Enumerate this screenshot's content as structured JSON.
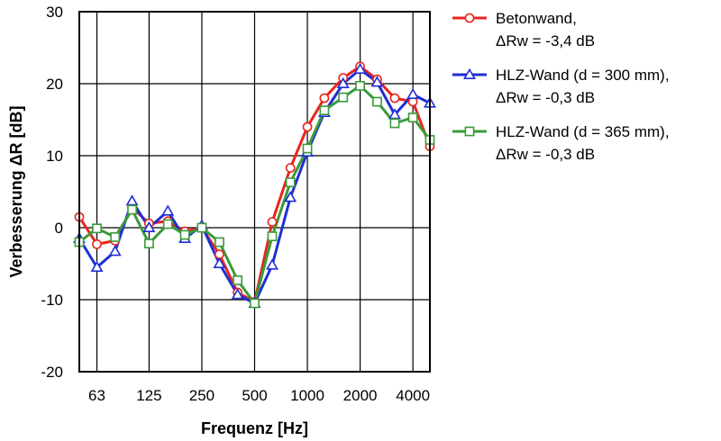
{
  "chart_data": {
    "type": "line",
    "xlabel": "Frequenz [Hz]",
    "ylabel": "Verbesserung ΔR [dB]",
    "x_scale": "log",
    "x_unit": "Hz",
    "xlim": [
      50,
      5000
    ],
    "ylim": [
      -20,
      30
    ],
    "grid": true,
    "legend_position": "right",
    "x": [
      50,
      63,
      80,
      100,
      125,
      160,
      200,
      250,
      315,
      400,
      500,
      630,
      800,
      1000,
      1250,
      1600,
      2000,
      2500,
      3150,
      4000,
      5000
    ],
    "xtick_values": [
      63,
      125,
      250,
      500,
      1000,
      2000,
      4000
    ],
    "xtick_labels": [
      "63",
      "125",
      "250",
      "500",
      "1000",
      "2000",
      "4000"
    ],
    "ytick_values": [
      -20,
      -10,
      0,
      10,
      20,
      30
    ],
    "ytick_labels": [
      "-20",
      "-10",
      "0",
      "10",
      "20",
      "30"
    ],
    "series": [
      {
        "name": "Betonwand,",
        "name_line2": "ΔRw = -3,4 dB",
        "color": "#e8251f",
        "marker": "circle",
        "values": [
          1.5,
          -2.3,
          -1.8,
          2.8,
          0.6,
          0.9,
          -0.5,
          0.0,
          -3.7,
          -9.0,
          -10.3,
          0.8,
          8.3,
          14.0,
          18.0,
          20.8,
          22.4,
          20.6,
          18.0,
          17.5,
          11.3
        ]
      },
      {
        "name": "HLZ-Wand (d = 300 mm),",
        "name_line2": "ΔRw = -0,3 dB",
        "color": "#1f2fd6",
        "marker": "triangle",
        "values": [
          -1.5,
          -5.5,
          -3.3,
          3.7,
          0.0,
          2.3,
          -1.5,
          0.3,
          -5.0,
          -9.3,
          -10.5,
          -5.2,
          4.2,
          10.5,
          16.0,
          20.0,
          22.0,
          20.2,
          15.7,
          18.5,
          17.3
        ]
      },
      {
        "name": "HLZ-Wand (d = 365 mm),",
        "name_line2": "ΔRw = -0,3 dB",
        "color": "#3a9a3a",
        "marker": "square",
        "values": [
          -2.0,
          -0.1,
          -1.3,
          2.5,
          -2.2,
          0.5,
          -1.0,
          0.0,
          -2.0,
          -7.3,
          -10.5,
          -1.2,
          6.3,
          11.0,
          16.3,
          18.1,
          19.7,
          17.5,
          14.5,
          15.3,
          12.2
        ]
      }
    ]
  }
}
